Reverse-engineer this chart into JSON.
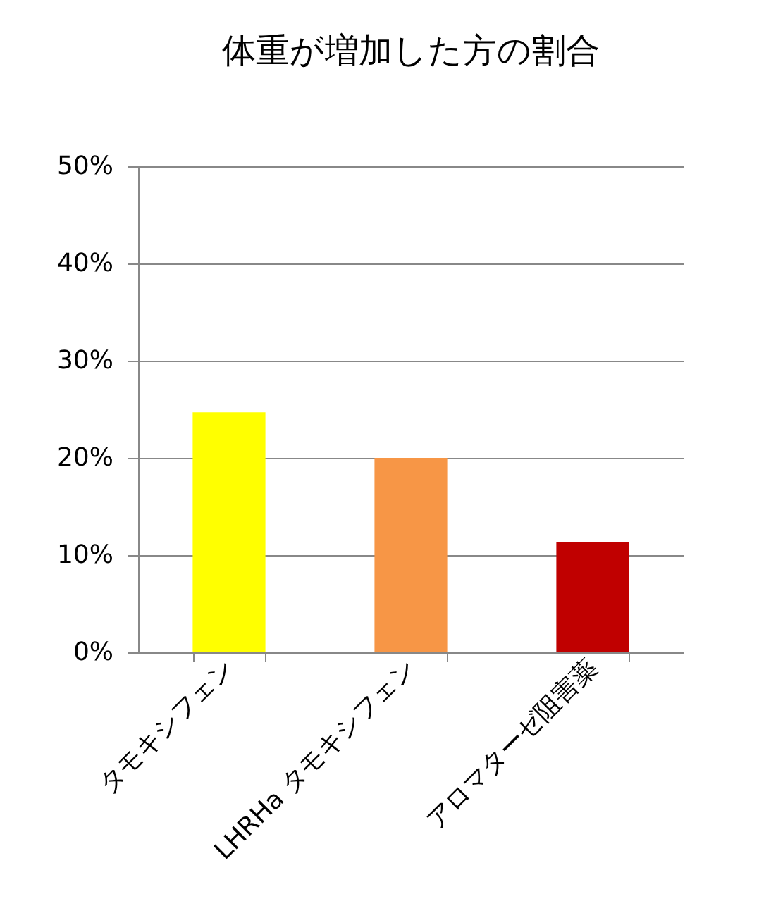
{
  "chart_data": {
    "type": "bar",
    "title": "体重が増加した方の割合",
    "categories": [
      "タモキシフェン",
      "LHRHa タモキシフェン",
      "アロマターゼ阻害薬"
    ],
    "values": [
      24.7,
      20,
      11.3
    ],
    "colors": [
      "#ffff00",
      "#f79646",
      "#c00000"
    ],
    "ylim": [
      0,
      50
    ],
    "yticks": [
      {
        "value": 0,
        "label": "0%"
      },
      {
        "value": 10,
        "label": "10%"
      },
      {
        "value": 20,
        "label": "20%"
      },
      {
        "value": 30,
        "label": "30%"
      },
      {
        "value": 40,
        "label": "40%"
      },
      {
        "value": 50,
        "label": "50%"
      }
    ],
    "grid": "y"
  }
}
